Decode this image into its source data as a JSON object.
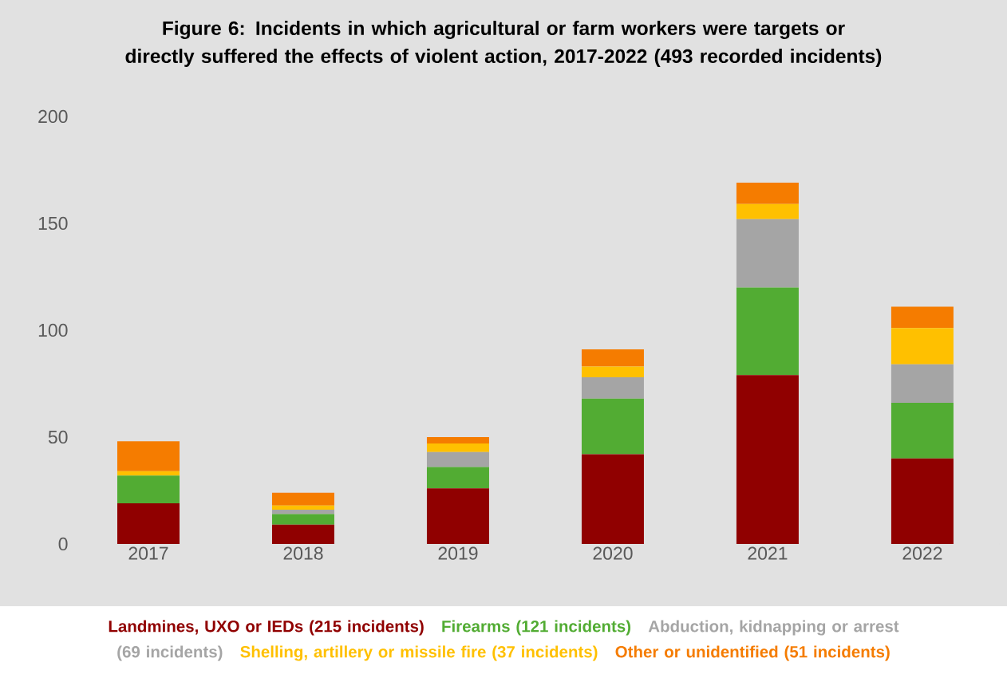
{
  "chart_data": {
    "type": "bar",
    "stacked": true,
    "title": "Figure 6: Incidents in which agricultural or farm workers were targets or directly suffered the effects of violent action, 2017-2022 (493 recorded incidents)",
    "categories": [
      "2017",
      "2018",
      "2019",
      "2020",
      "2021",
      "2022"
    ],
    "series": [
      {
        "name": "Landmines, UXO or IEDs (215 incidents)",
        "color": "#900000",
        "values": [
          19,
          9,
          26,
          42,
          79,
          40
        ]
      },
      {
        "name": "Firearms (121 incidents)",
        "color": "#52ac33",
        "values": [
          13,
          5,
          10,
          26,
          41,
          26
        ]
      },
      {
        "name": "Abduction, kidnapping or arrest (69 incidents)",
        "color": "#a5a5a5",
        "values": [
          0,
          2,
          7,
          10,
          32,
          18
        ]
      },
      {
        "name": "Shelling, artillery or missile fire (37 incidents)",
        "color": "#ffc000",
        "values": [
          2,
          2,
          4,
          5,
          7,
          17
        ]
      },
      {
        "name": "Other or unidentified (51 incidents)",
        "color": "#f57c00",
        "values": [
          14,
          6,
          3,
          8,
          10,
          10
        ]
      }
    ],
    "ylim": [
      0,
      200
    ],
    "yticks": [
      0,
      50,
      100,
      150,
      200
    ],
    "grid": false,
    "legend": "bottom"
  }
}
